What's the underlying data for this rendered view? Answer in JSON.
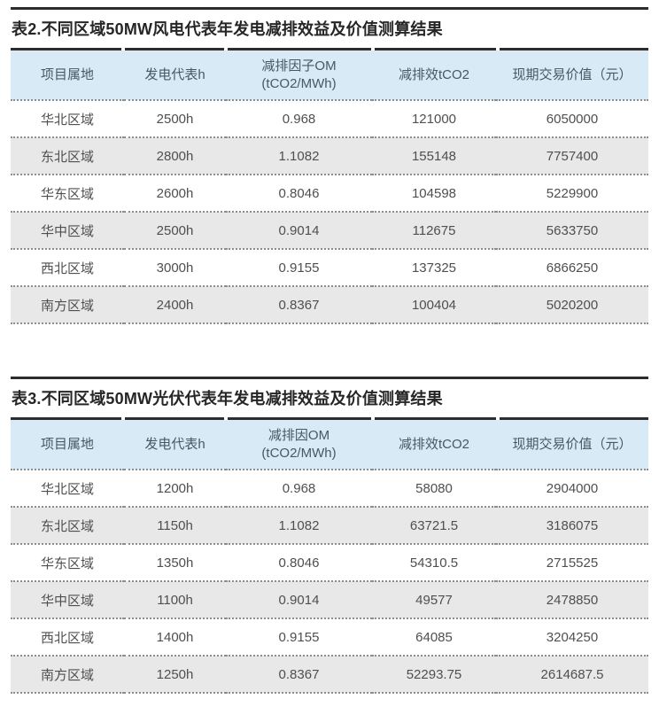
{
  "colors": {
    "rule": "#2d2d2d",
    "header_bg": "#d8eaf5",
    "row_alt_bg": "#e8e8e8",
    "separator": "#8d8d8d",
    "title_text": "#262626",
    "header_text": "#495763",
    "cell_text": "#4f4f4f"
  },
  "tables": [
    {
      "title": "表2.不同区域50MW风电代表年发电减排效益及价值测算结果",
      "columns": [
        "项目属地",
        "发电代表h",
        "减排因子OM\n(tCO2/MWh)",
        "减排效tCO2",
        "现期交易价值（元）"
      ],
      "rows": [
        [
          "华北区域",
          "2500h",
          "0.968",
          "121000",
          "6050000"
        ],
        [
          "东北区域",
          "2800h",
          "1.1082",
          "155148",
          "7757400"
        ],
        [
          "华东区域",
          "2600h",
          "0.8046",
          "104598",
          "5229900"
        ],
        [
          "华中区域",
          "2500h",
          "0.9014",
          "112675",
          "5633750"
        ],
        [
          "西北区域",
          "3000h",
          "0.9155",
          "137325",
          "6866250"
        ],
        [
          "南方区域",
          "2400h",
          "0.8367",
          "100404",
          "5020200"
        ]
      ]
    },
    {
      "title": "表3.不同区域50MW光伏代表年发电减排效益及价值测算结果",
      "columns": [
        "项目属地",
        "发电代表h",
        "减排因OM\n(tCO2/MWh)",
        "减排效tCO2",
        "现期交易价值（元）"
      ],
      "rows": [
        [
          "华北区域",
          "1200h",
          "0.968",
          "58080",
          "2904000"
        ],
        [
          "东北区域",
          "1150h",
          "1.1082",
          "63721.5",
          "3186075"
        ],
        [
          "华东区域",
          "1350h",
          "0.8046",
          "54310.5",
          "2715525"
        ],
        [
          "华中区域",
          "1100h",
          "0.9014",
          "49577",
          "2478850"
        ],
        [
          "西北区域",
          "1400h",
          "0.9155",
          "64085",
          "3204250"
        ],
        [
          "南方区域",
          "1250h",
          "0.8367",
          "52293.75",
          "2614687.5"
        ]
      ]
    }
  ]
}
